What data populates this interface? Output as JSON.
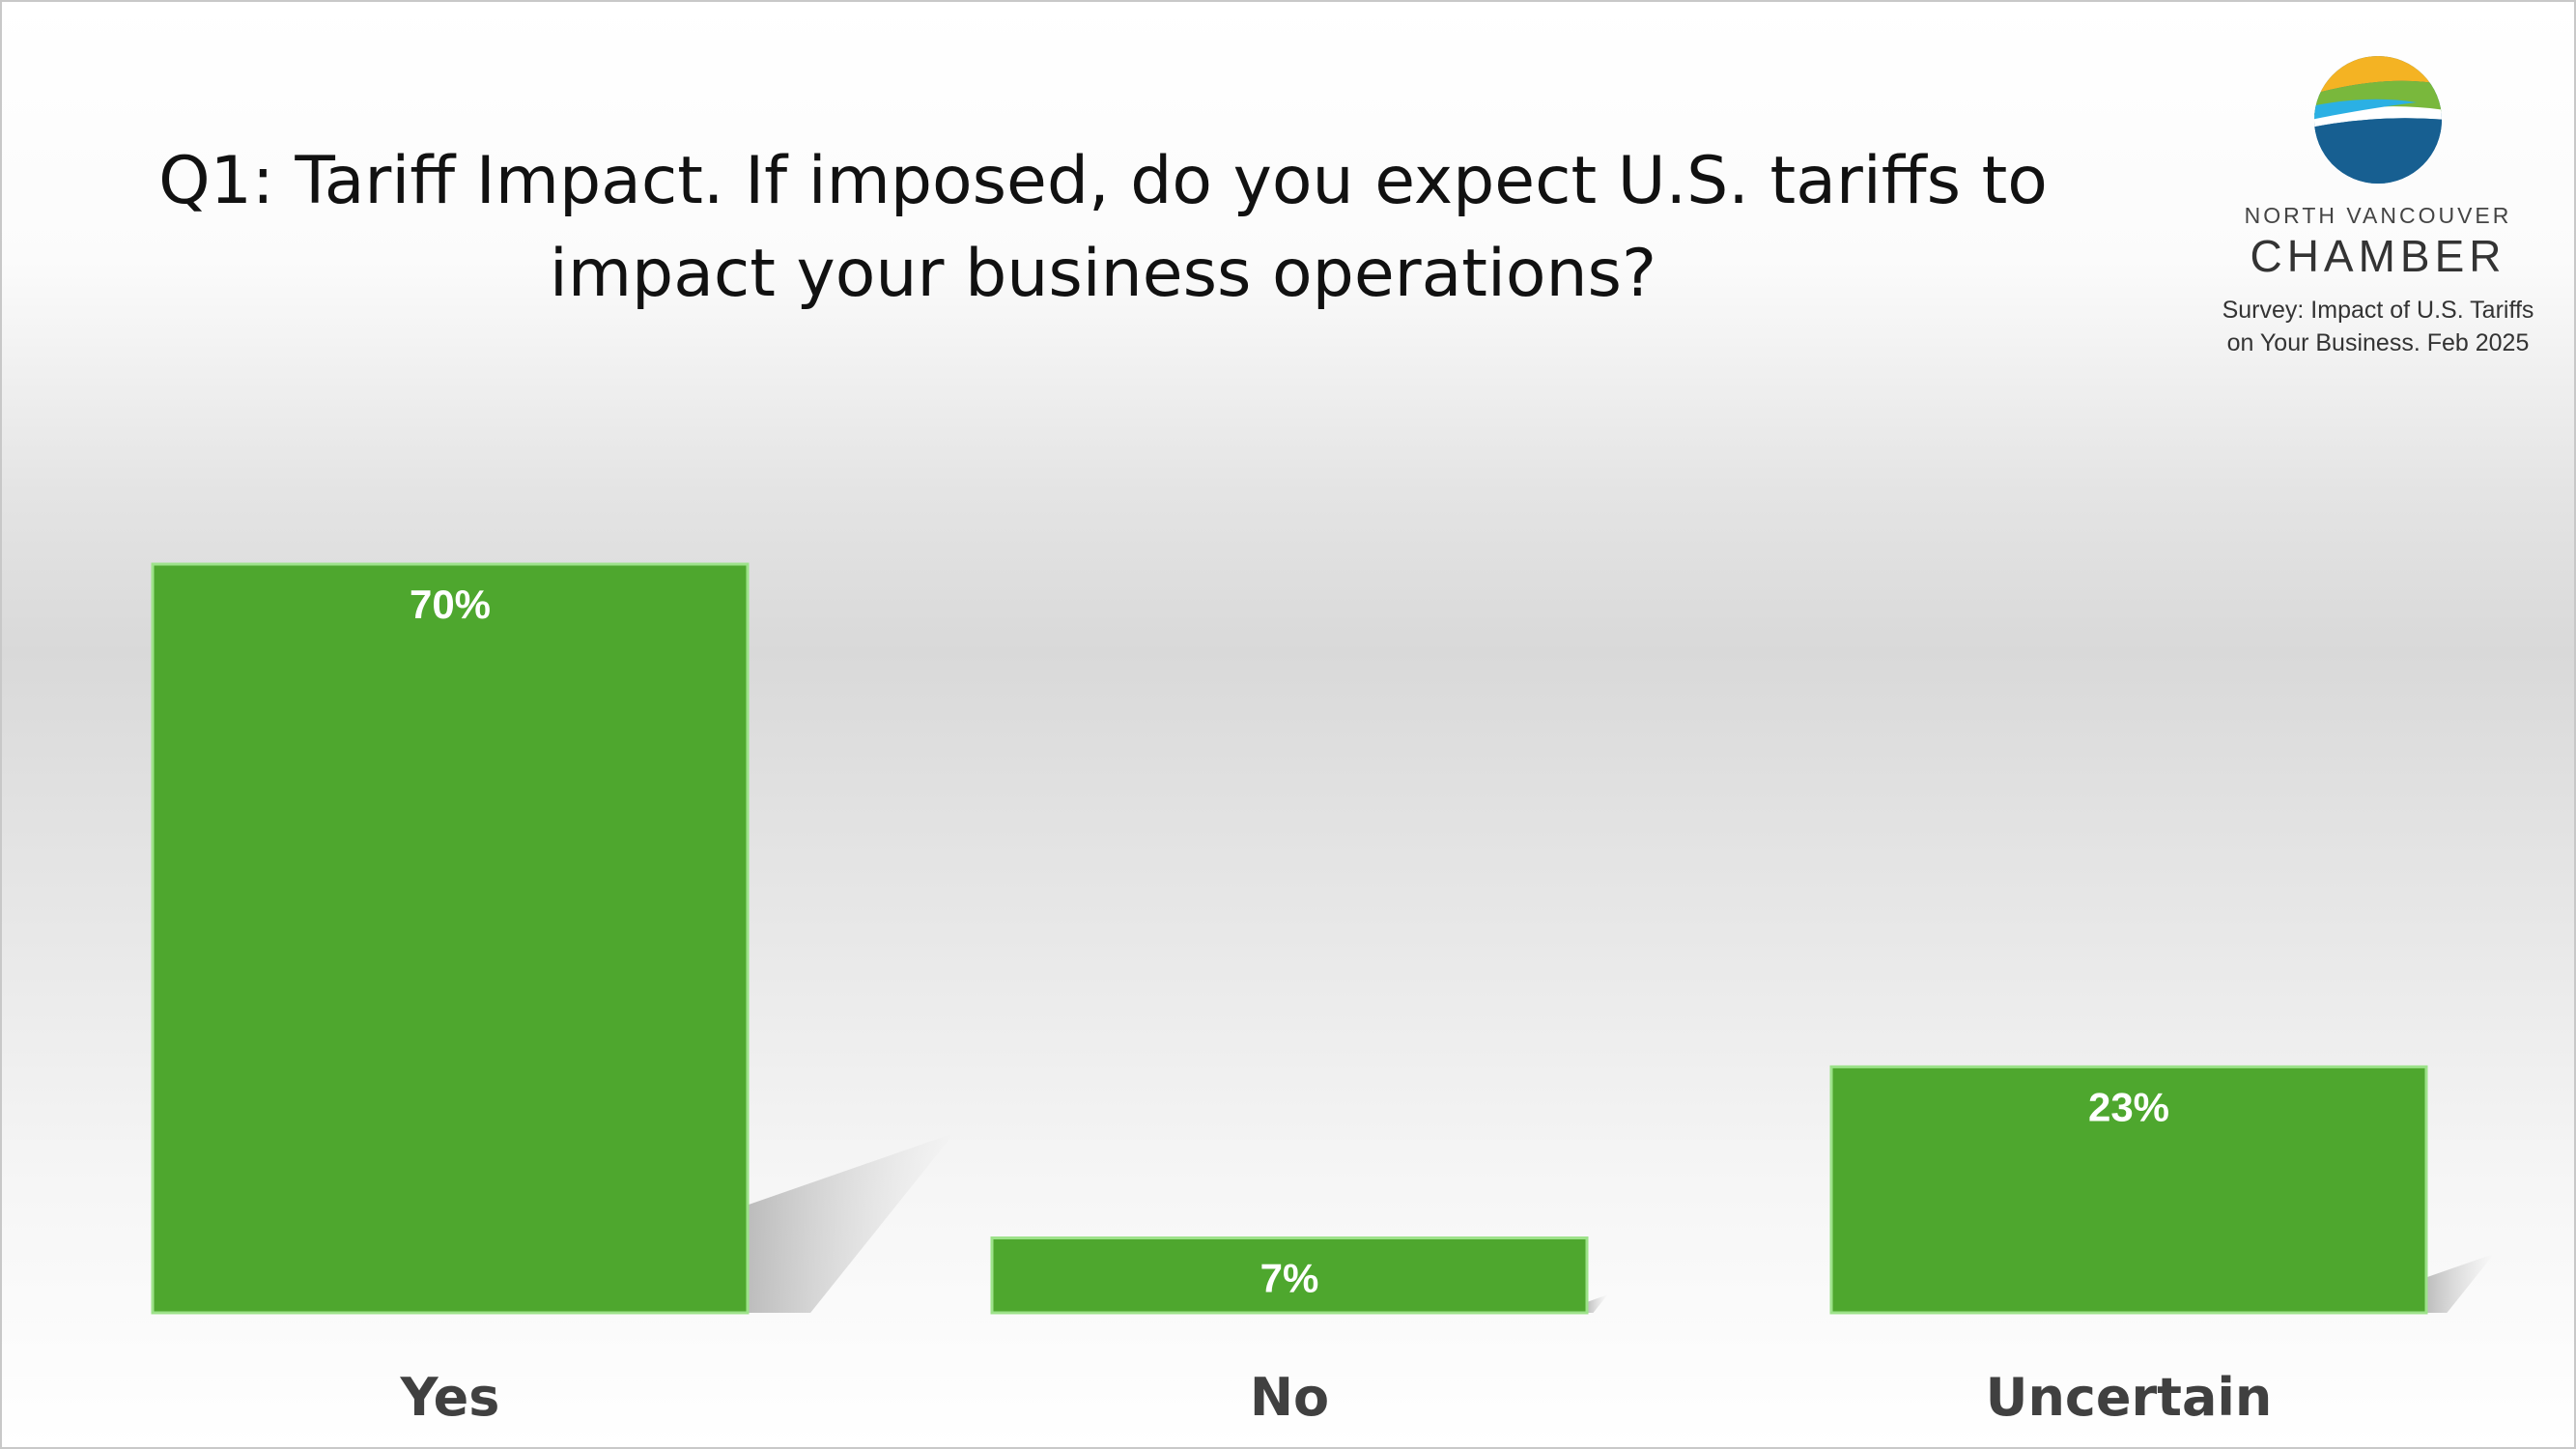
{
  "slide": {
    "title": "Q1: Tariff Impact.  If imposed, do you expect U.S. tariffs to impact your business operations?",
    "logo": {
      "line1": "NORTH VANCOUVER",
      "line2": "CHAMBER",
      "caption_line1": "Survey: Impact of U.S. Tariffs",
      "caption_line2": "on Your Business. Feb 2025"
    }
  },
  "chart_data": {
    "type": "bar",
    "categories": [
      "Yes",
      "No",
      "Uncertain"
    ],
    "values": [
      70,
      7,
      23
    ],
    "data_labels": [
      "70%",
      "7%",
      "23%"
    ],
    "unit": "%",
    "ylim": [
      0,
      100
    ],
    "grid": false,
    "legend": "none",
    "bar_color": "#4ea72e",
    "bar_border_color": "#9de28a",
    "label_color": "#ffffff",
    "category_label_color": "#404040"
  }
}
